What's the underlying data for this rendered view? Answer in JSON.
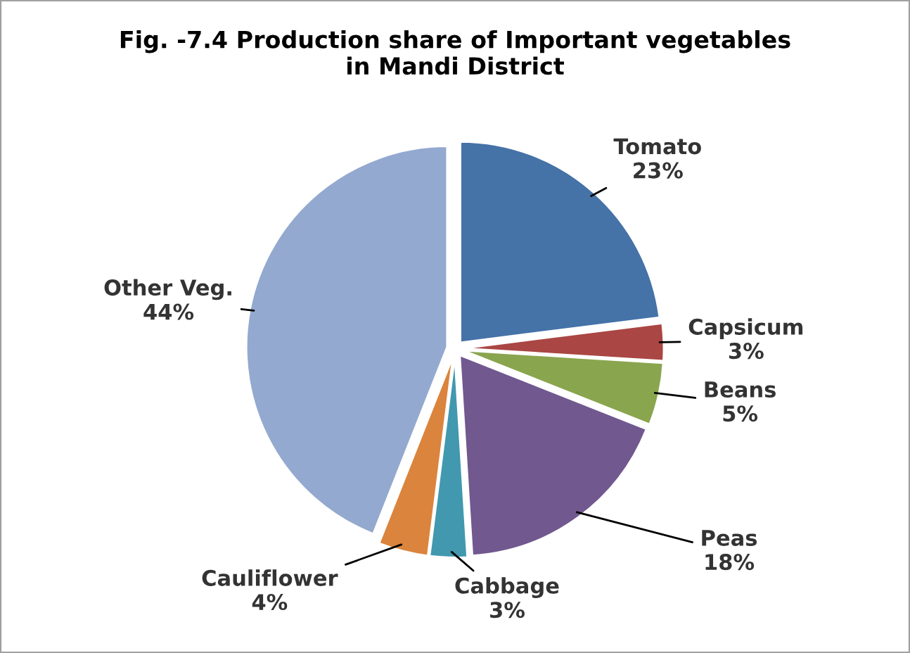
{
  "chart_data": {
    "type": "pie",
    "title": "Fig. -7.4 Production share of Important vegetables\nin Mandi District",
    "categories": [
      "Tomato",
      "Capsicum",
      "Beans",
      "Peas",
      "Cabbage",
      "Cauliflower",
      "Other Veg."
    ],
    "values": [
      23,
      3,
      5,
      18,
      3,
      4,
      44
    ],
    "value_labels": [
      "23%",
      "3%",
      "5%",
      "18%",
      "3%",
      "4%",
      "44%"
    ],
    "colors": [
      "#4572a7",
      "#aa4643",
      "#89a54e",
      "#71588f",
      "#4198af",
      "#db843d",
      "#93a9cf"
    ],
    "legend": false
  }
}
